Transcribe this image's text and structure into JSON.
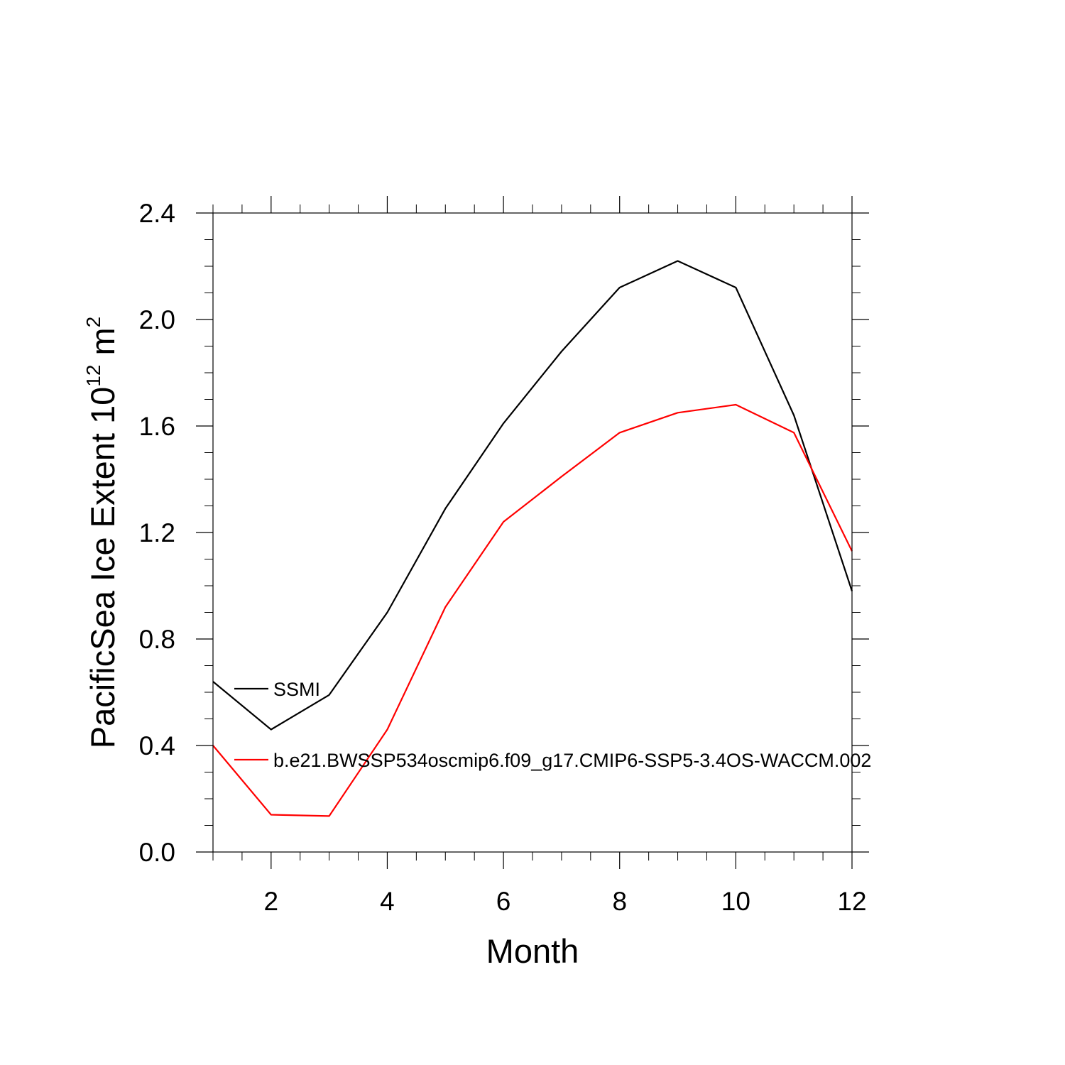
{
  "chart_data": {
    "type": "line",
    "title": "",
    "xlabel": "Month",
    "ylabel": {
      "main": "PacificSea Ice Extent 10",
      "exponent": "12",
      "unit_base": " m",
      "unit_exponent": "2"
    },
    "xlim": [
      1,
      12
    ],
    "ylim": [
      0.0,
      2.4
    ],
    "x_ticks": [
      2,
      4,
      6,
      8,
      10,
      12
    ],
    "x_tick_labels": [
      "2",
      "4",
      "6",
      "8",
      "10",
      "12"
    ],
    "y_ticks": [
      0.0,
      0.4,
      0.8,
      1.2,
      1.6,
      2.0,
      2.4
    ],
    "y_tick_labels": [
      "0.0",
      "0.4",
      "0.8",
      "1.2",
      "1.6",
      "2.0",
      "2.4"
    ],
    "grid": false,
    "legend_placement": "left, inside plot",
    "x": [
      1,
      2,
      3,
      4,
      5,
      6,
      7,
      8,
      9,
      10,
      11,
      12
    ],
    "series": [
      {
        "name": "SSMI",
        "color": "#000000",
        "values": [
          0.64,
          0.46,
          0.59,
          0.9,
          1.29,
          1.61,
          1.88,
          2.12,
          2.22,
          2.12,
          1.64,
          0.98
        ]
      },
      {
        "name": "b.e21.BWSSP534oscmip6.f09_g17.CMIP6-SSP5-3.4OS-WACCM.002",
        "color": "#ff0000",
        "values": [
          0.4,
          0.14,
          0.135,
          0.46,
          0.92,
          1.24,
          1.41,
          1.575,
          1.65,
          1.68,
          1.575,
          1.13
        ]
      }
    ]
  }
}
